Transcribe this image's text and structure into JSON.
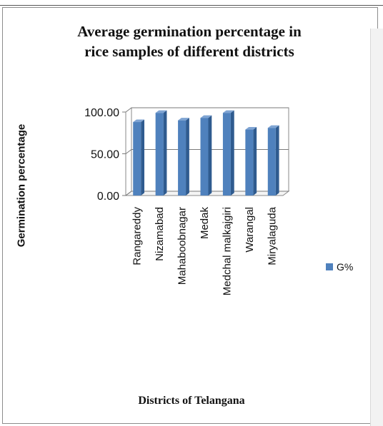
{
  "chart_data": {
    "type": "bar",
    "title": "Average germination percentage in rice samples of different districts",
    "title_lines": [
      "Average germination percentage in",
      "rice samples of  different districts"
    ],
    "xlabel": "Districts of Telangana",
    "ylabel": "Germination percentage",
    "categories": [
      "Rangareddy",
      "Nizamabad",
      "Mahaboobnagar",
      "Medak",
      "Medchal malkajgiri",
      "Warangal",
      "Miryalaguda"
    ],
    "series": [
      {
        "name": "G%",
        "values": [
          88,
          99,
          90,
          93,
          99,
          79,
          81
        ]
      }
    ],
    "ylim": [
      0,
      100
    ],
    "yticks": [
      "0.00",
      "50.00",
      "100.00"
    ],
    "grid": true,
    "legend": "right",
    "bar_color": "#4f81bd"
  }
}
